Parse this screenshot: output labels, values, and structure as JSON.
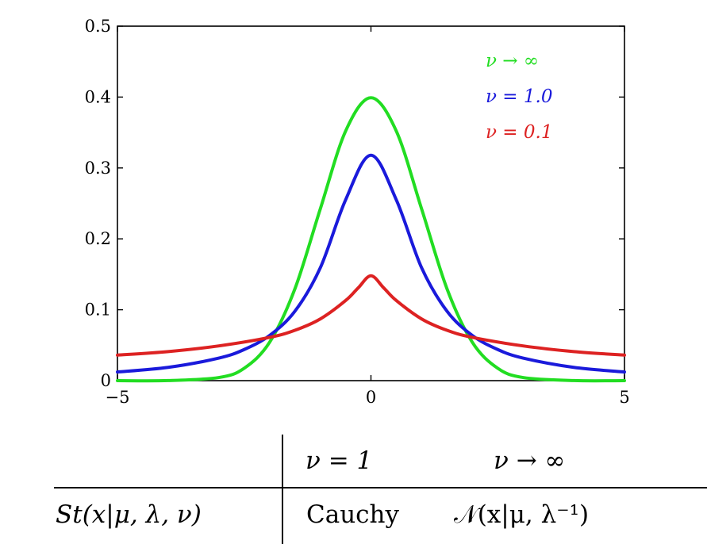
{
  "chart_data": {
    "type": "line",
    "title": "",
    "xlabel": "",
    "ylabel": "",
    "xlim": [
      -5,
      5
    ],
    "ylim": [
      0,
      0.5
    ],
    "x_ticks": [
      "−5",
      "0",
      "5"
    ],
    "y_ticks": [
      "0",
      "0.1",
      "0.2",
      "0.3",
      "0.4",
      "0.5"
    ],
    "legend_position": "top-right",
    "grid": false,
    "series": [
      {
        "name": "ν → ∞",
        "color": "#22dd22",
        "x": [
          -5,
          -4,
          -3,
          -2.5,
          -2,
          -1.5,
          -1,
          -0.5,
          0,
          0.5,
          1,
          1.5,
          2,
          2.5,
          3,
          4,
          5
        ],
        "values": [
          0.0,
          0.0001,
          0.0044,
          0.0175,
          0.054,
          0.1295,
          0.242,
          0.352,
          0.399,
          0.352,
          0.242,
          0.1295,
          0.054,
          0.0175,
          0.0044,
          0.0001,
          0.0
        ]
      },
      {
        "name": "ν = 1.0",
        "color": "#1a1adb",
        "x": [
          -5,
          -4,
          -3,
          -2.5,
          -2,
          -1.5,
          -1,
          -0.5,
          0,
          0.5,
          1,
          1.5,
          2,
          2.5,
          3,
          4,
          5
        ],
        "values": [
          0.0122,
          0.0187,
          0.0318,
          0.0439,
          0.0637,
          0.0979,
          0.159,
          0.255,
          0.318,
          0.255,
          0.159,
          0.0979,
          0.0637,
          0.0439,
          0.0318,
          0.0187,
          0.0122
        ]
      },
      {
        "name": "ν = 0.1",
        "color": "#dd2222",
        "x": [
          -5,
          -4,
          -3,
          -2,
          -1.5,
          -1,
          -0.5,
          -0.25,
          0,
          0.25,
          0.5,
          1,
          1.5,
          2,
          3,
          4,
          5
        ],
        "values": [
          0.036,
          0.041,
          0.049,
          0.061,
          0.071,
          0.087,
          0.113,
          0.131,
          0.148,
          0.131,
          0.113,
          0.087,
          0.071,
          0.061,
          0.049,
          0.041,
          0.036
        ]
      }
    ]
  },
  "table": {
    "col_headers": [
      "ν = 1",
      "ν → ∞"
    ],
    "row_header": "St(x|μ, λ, ν)",
    "cells": [
      "Cauchy",
      "𝒩(x|μ, λ⁻¹)"
    ]
  }
}
